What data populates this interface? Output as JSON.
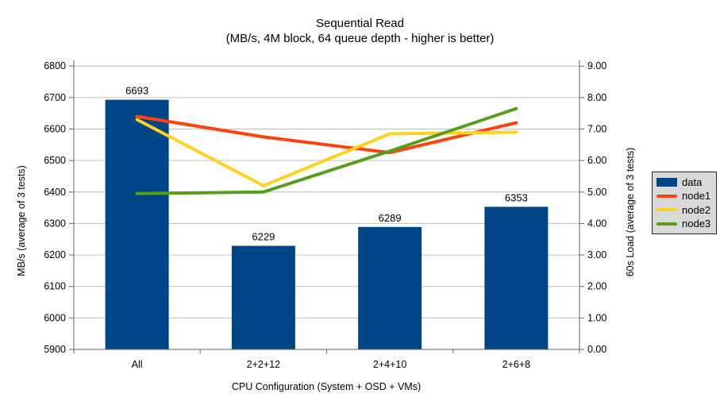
{
  "chart_data": {
    "type": "bar+line",
    "title": "Sequential Read",
    "subtitle": "(MB/s, 4M block, 64 queue depth - higher is better)",
    "categories": [
      "All",
      "2+2+12",
      "2+4+10",
      "2+6+8"
    ],
    "bar_series": {
      "name": "data",
      "color": "#004586",
      "axis": "left",
      "values": [
        6693,
        6229,
        6289,
        6353
      ],
      "value_labels": [
        "6693",
        "6229",
        "6289",
        "6353"
      ]
    },
    "line_series": [
      {
        "name": "node1",
        "color": "#FF420E",
        "axis": "right",
        "values": [
          7.4,
          6.75,
          6.25,
          7.2
        ]
      },
      {
        "name": "node2",
        "color": "#FFD320",
        "axis": "right",
        "values": [
          7.3,
          5.2,
          6.85,
          6.9
        ]
      },
      {
        "name": "node3",
        "color": "#579D1C",
        "axis": "right",
        "values": [
          4.95,
          5.0,
          6.3,
          7.65
        ]
      }
    ],
    "left_axis": {
      "label": "MB/s (average of 3 tests)",
      "min": 5900,
      "max": 6800,
      "step": 100,
      "tick_labels": [
        "5900",
        "6000",
        "6100",
        "6200",
        "6300",
        "6400",
        "6500",
        "6600",
        "6700",
        "6800"
      ]
    },
    "right_axis": {
      "label": "60s Load (average of 3 tests)",
      "min": 0,
      "max": 9,
      "step": 1,
      "tick_labels": [
        "0.00",
        "1.00",
        "2.00",
        "3.00",
        "4.00",
        "5.00",
        "6.00",
        "7.00",
        "8.00",
        "9.00"
      ]
    },
    "x_axis": {
      "label": "CPU Configuration (System + OSD + VMs)"
    },
    "legend": {
      "position": "right",
      "items": [
        {
          "label": "data",
          "color": "#004586",
          "shape": "rect"
        },
        {
          "label": "node1",
          "color": "#FF420E",
          "shape": "line"
        },
        {
          "label": "node2",
          "color": "#FFD320",
          "shape": "line"
        },
        {
          "label": "node3",
          "color": "#579D1C",
          "shape": "line"
        }
      ]
    },
    "style_colors": {
      "background": "#ffffff",
      "gridline": "#c0c0c0",
      "axis_line": "#666666",
      "legend_background": "#d9d9d9",
      "legend_border": "#262626"
    },
    "grid": "horizontal-only",
    "higher_is_better": true
  }
}
